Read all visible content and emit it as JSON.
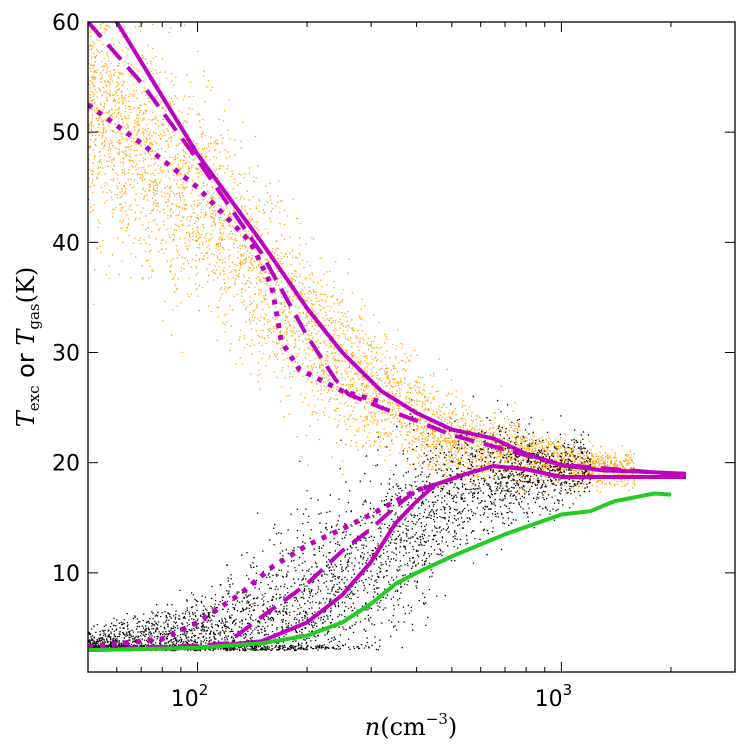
{
  "chart_data": {
    "type": "scatter",
    "x_scale": "log",
    "xlim": [
      50,
      3000
    ],
    "ylim": [
      1,
      60
    ],
    "x_ticks": [
      {
        "value": 100,
        "base": "10",
        "exp": "2"
      },
      {
        "value": 1000,
        "base": "10",
        "exp": "3"
      }
    ],
    "y_ticks": [
      {
        "value": 10,
        "label": "10"
      },
      {
        "value": 20,
        "label": "20"
      },
      {
        "value": 30,
        "label": "30"
      },
      {
        "value": 40,
        "label": "40"
      },
      {
        "value": 50,
        "label": "50"
      },
      {
        "value": 60,
        "label": "60"
      }
    ],
    "xlabel": {
      "var": "n",
      "open": "(",
      "unit": "cm",
      "exp": "−3",
      "close": ")"
    },
    "ylabel": {
      "t1": "T",
      "s1": "exc",
      "mid": " or ",
      "t2": "T",
      "s2": "gas",
      "unit": "(K)"
    },
    "colors": {
      "gas_scatter": "#ffa500",
      "exc_scatter": "#000000",
      "magenta": "#bf00bf",
      "green": "#22cc22"
    },
    "scatter_clouds": [
      {
        "name": "T_gas",
        "color": "#ffa500",
        "count": 5200,
        "log_x_range": [
          1.699,
          3.2
        ],
        "center": [
          [
            50,
            52
          ],
          [
            100,
            44
          ],
          [
            150,
            37
          ],
          [
            200,
            32
          ],
          [
            250,
            29
          ],
          [
            300,
            27
          ],
          [
            400,
            24
          ],
          [
            500,
            22
          ],
          [
            700,
            21
          ],
          [
            1000,
            20
          ],
          [
            1500,
            19.4
          ],
          [
            2000,
            19
          ]
        ],
        "spread": [
          [
            50,
            5.5
          ],
          [
            150,
            4.5
          ],
          [
            300,
            3
          ],
          [
            500,
            2
          ],
          [
            1000,
            1
          ],
          [
            2000,
            0.6
          ]
        ],
        "shift_at_left": 6
      },
      {
        "name": "T_exc",
        "color": "#000000",
        "count": 4200,
        "log_x_range": [
          1.699,
          3.08
        ],
        "center": [
          [
            50,
            3.2
          ],
          [
            100,
            4
          ],
          [
            150,
            5
          ],
          [
            200,
            7
          ],
          [
            250,
            9
          ],
          [
            300,
            11
          ],
          [
            400,
            14.5
          ],
          [
            500,
            17
          ],
          [
            700,
            19
          ],
          [
            1000,
            19.5
          ],
          [
            1200,
            19.5
          ]
        ],
        "spread": [
          [
            50,
            0.7
          ],
          [
            100,
            2
          ],
          [
            200,
            4
          ],
          [
            300,
            4.5
          ],
          [
            500,
            3
          ],
          [
            1000,
            1.5
          ],
          [
            1200,
            1.2
          ]
        ]
      }
    ],
    "series": [
      {
        "name": "Tgas-solid",
        "color": "#bf00bf",
        "style": "solid",
        "points": [
          [
            50,
            63
          ],
          [
            60,
            60
          ],
          [
            100,
            48
          ],
          [
            150,
            40
          ],
          [
            200,
            34
          ],
          [
            250,
            30
          ],
          [
            320,
            26.5
          ],
          [
            400,
            24.5
          ],
          [
            500,
            23
          ],
          [
            650,
            22.2
          ],
          [
            800,
            20.8
          ],
          [
            1000,
            19.8
          ],
          [
            1300,
            19.3
          ],
          [
            1600,
            19.2
          ],
          [
            2200,
            19
          ]
        ]
      },
      {
        "name": "Tgas-dashed",
        "color": "#bf00bf",
        "style": "dashed",
        "points": [
          [
            50,
            60
          ],
          [
            70,
            54.5
          ],
          [
            100,
            47.5
          ],
          [
            150,
            39
          ],
          [
            200,
            31.5
          ],
          [
            240,
            27.5
          ],
          [
            260,
            26.2
          ],
          [
            320,
            25
          ],
          [
            400,
            23.8
          ],
          [
            500,
            22.5
          ],
          [
            700,
            21.2
          ],
          [
            1000,
            19.8
          ],
          [
            2000,
            19
          ]
        ]
      },
      {
        "name": "Tgas-dotted",
        "color": "#bf00bf",
        "style": "dotted",
        "points": [
          [
            50,
            52.5
          ],
          [
            70,
            49
          ],
          [
            100,
            45
          ],
          [
            140,
            40
          ],
          [
            160,
            36
          ],
          [
            170,
            31
          ],
          [
            190,
            28.5
          ],
          [
            250,
            26.5
          ],
          [
            320,
            25.5
          ]
        ]
      },
      {
        "name": "Texc-solid",
        "color": "#bf00bf",
        "style": "solid",
        "points": [
          [
            50,
            3
          ],
          [
            100,
            3.2
          ],
          [
            150,
            3.8
          ],
          [
            200,
            5.5
          ],
          [
            250,
            8
          ],
          [
            300,
            11
          ],
          [
            350,
            14.5
          ],
          [
            400,
            16.5
          ],
          [
            450,
            18
          ],
          [
            550,
            19
          ],
          [
            650,
            19.7
          ],
          [
            800,
            19.4
          ],
          [
            1000,
            18.7
          ],
          [
            1500,
            18.7
          ],
          [
            2200,
            18.7
          ]
        ]
      },
      {
        "name": "Texc-dashed",
        "color": "#bf00bf",
        "style": "dashed",
        "points": [
          [
            50,
            3
          ],
          [
            100,
            3.4
          ],
          [
            120,
            3.6
          ],
          [
            150,
            6
          ],
          [
            200,
            9
          ],
          [
            250,
            12
          ],
          [
            300,
            14
          ],
          [
            350,
            16
          ],
          [
            400,
            17.5
          ],
          [
            450,
            18
          ]
        ]
      },
      {
        "name": "Texc-dotted",
        "color": "#bf00bf",
        "style": "dotted",
        "points": [
          [
            50,
            3.3
          ],
          [
            80,
            4
          ],
          [
            100,
            5.5
          ],
          [
            130,
            8
          ],
          [
            160,
            10.5
          ],
          [
            200,
            12.5
          ],
          [
            250,
            14
          ],
          [
            300,
            15.3
          ],
          [
            350,
            16.5
          ],
          [
            400,
            17.5
          ],
          [
            450,
            18
          ]
        ]
      },
      {
        "name": "Texc-green",
        "color": "#22cc22",
        "style": "solid",
        "points": [
          [
            50,
            3
          ],
          [
            100,
            3.2
          ],
          [
            150,
            3.6
          ],
          [
            200,
            4.3
          ],
          [
            250,
            5.5
          ],
          [
            300,
            7.2
          ],
          [
            350,
            9
          ],
          [
            400,
            10
          ],
          [
            500,
            11.5
          ],
          [
            700,
            13.5
          ],
          [
            1000,
            15.3
          ],
          [
            1200,
            15.6
          ],
          [
            1400,
            16.5
          ],
          [
            1800,
            17.2
          ],
          [
            2000,
            17.1
          ]
        ]
      }
    ]
  }
}
